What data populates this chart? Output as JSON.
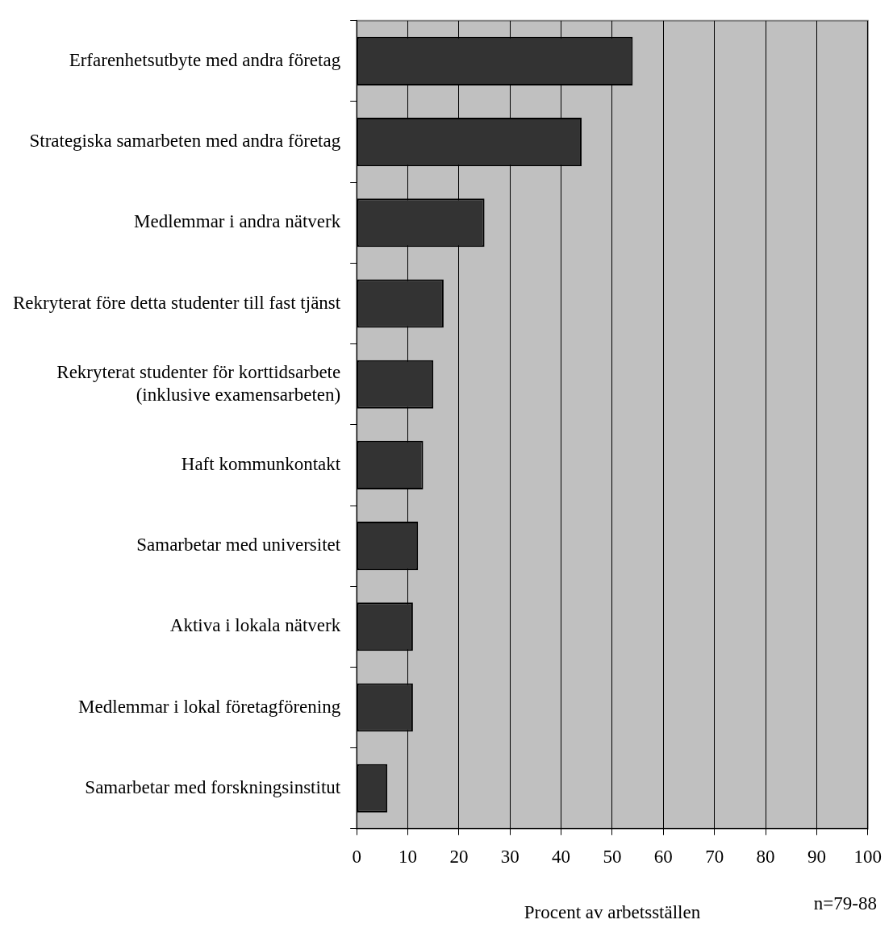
{
  "chart_data": {
    "type": "bar",
    "orientation": "horizontal",
    "categories": [
      "Erfarenhetsutbyte med andra företag",
      "Strategiska samarbeten med andra företag",
      "Medlemmar i andra nätverk",
      "Rekryterat före detta studenter till fast tjänst",
      "Rekryterat studenter för korttidsarbete\n(inklusive examensarbeten)",
      "Haft kommunkontakt",
      "Samarbetar med universitet",
      "Aktiva i lokala nätverk",
      "Medlemmar i lokal företagförening",
      "Samarbetar med forskningsinstitut"
    ],
    "values": [
      54,
      44,
      25,
      17,
      15,
      13,
      12,
      11,
      11,
      6
    ],
    "color": "#333333",
    "xlim": [
      0,
      100
    ],
    "xticks": [
      0,
      10,
      20,
      30,
      40,
      50,
      60,
      70,
      80,
      90,
      100
    ],
    "grid": "x",
    "xlabel": "Procent av arbetsställen",
    "annotations": [
      "n=79-88"
    ]
  }
}
